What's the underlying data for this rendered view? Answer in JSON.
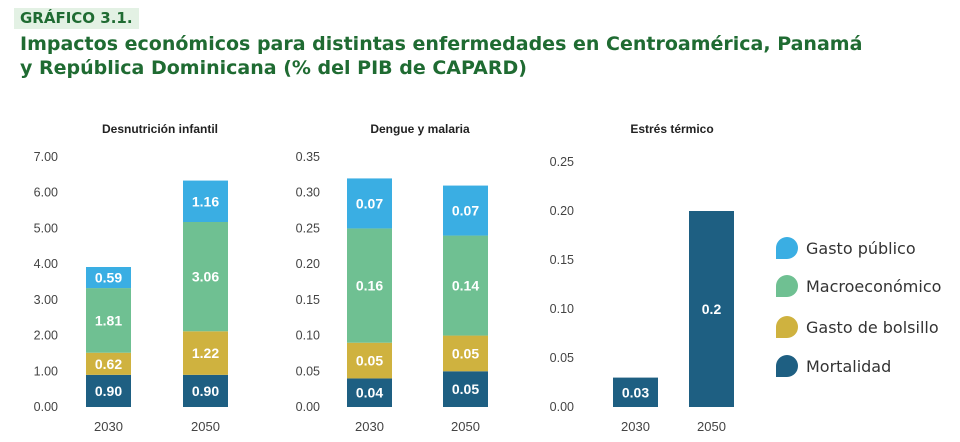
{
  "figure": {
    "label": "GRÁFICO 3.1.",
    "title_line1": "Impactos económicos para distintas enfermedades en Centroamérica, Panamá",
    "title_line2": "y República Dominicana (% del PIB de CAPARD)"
  },
  "colors": {
    "Gasto público": "#3aaee3",
    "Macroeconómico": "#6fc092",
    "Gasto de bolsillo": "#cfb23f",
    "Mortalidad": "#1e5f82",
    "axis_text": "#444444"
  },
  "legend": [
    {
      "name": "Gasto público"
    },
    {
      "name": "Macroeconómico"
    },
    {
      "name": "Gasto de bolsillo"
    },
    {
      "name": "Mortalidad"
    }
  ],
  "chart_data": [
    {
      "type": "bar",
      "stacked": true,
      "title": "Desnutrición infantil",
      "categories": [
        "2030",
        "2050"
      ],
      "ylim": [
        0,
        7
      ],
      "yticks": [
        "0.00",
        "1.00",
        "2.00",
        "3.00",
        "4.00",
        "5.00",
        "6.00",
        "7.00"
      ],
      "grid": false,
      "series": [
        {
          "name": "Mortalidad",
          "values": [
            0.9,
            0.9
          ],
          "labels": [
            "0.90",
            "0.90"
          ]
        },
        {
          "name": "Gasto de bolsillo",
          "values": [
            0.62,
            1.22
          ],
          "labels": [
            "0.62",
            "1.22"
          ]
        },
        {
          "name": "Macroeconómico",
          "values": [
            1.81,
            3.06
          ],
          "labels": [
            "1.81",
            "3.06"
          ]
        },
        {
          "name": "Gasto público",
          "values": [
            0.59,
            1.16
          ],
          "labels": [
            "0.59",
            "1.16"
          ]
        }
      ]
    },
    {
      "type": "bar",
      "stacked": true,
      "title": "Dengue y malaria",
      "categories": [
        "2030",
        "2050"
      ],
      "ylim": [
        0,
        0.35
      ],
      "yticks": [
        "0.00",
        "0.05",
        "0.10",
        "0.15",
        "0.20",
        "0.25",
        "0.30",
        "0.35"
      ],
      "grid": false,
      "series": [
        {
          "name": "Mortalidad",
          "values": [
            0.04,
            0.05
          ],
          "labels": [
            "0.04",
            "0.05"
          ]
        },
        {
          "name": "Gasto de bolsillo",
          "values": [
            0.05,
            0.05
          ],
          "labels": [
            "0.05",
            "0.05"
          ]
        },
        {
          "name": "Macroeconómico",
          "values": [
            0.16,
            0.14
          ],
          "labels": [
            "0.16",
            "0.14"
          ]
        },
        {
          "name": "Gasto público",
          "values": [
            0.07,
            0.07
          ],
          "labels": [
            "0.07",
            "0.07"
          ]
        }
      ]
    },
    {
      "type": "bar",
      "stacked": true,
      "title": "Estrés térmico",
      "categories": [
        "2030",
        "2050"
      ],
      "ylim": [
        0,
        0.25
      ],
      "yticks": [
        "0.00",
        "0.05",
        "0.10",
        "0.15",
        "0.20",
        "0.25"
      ],
      "grid": false,
      "series": [
        {
          "name": "Mortalidad",
          "values": [
            0.03,
            0.2
          ],
          "labels": [
            "0.03",
            "0.2"
          ]
        }
      ]
    }
  ]
}
